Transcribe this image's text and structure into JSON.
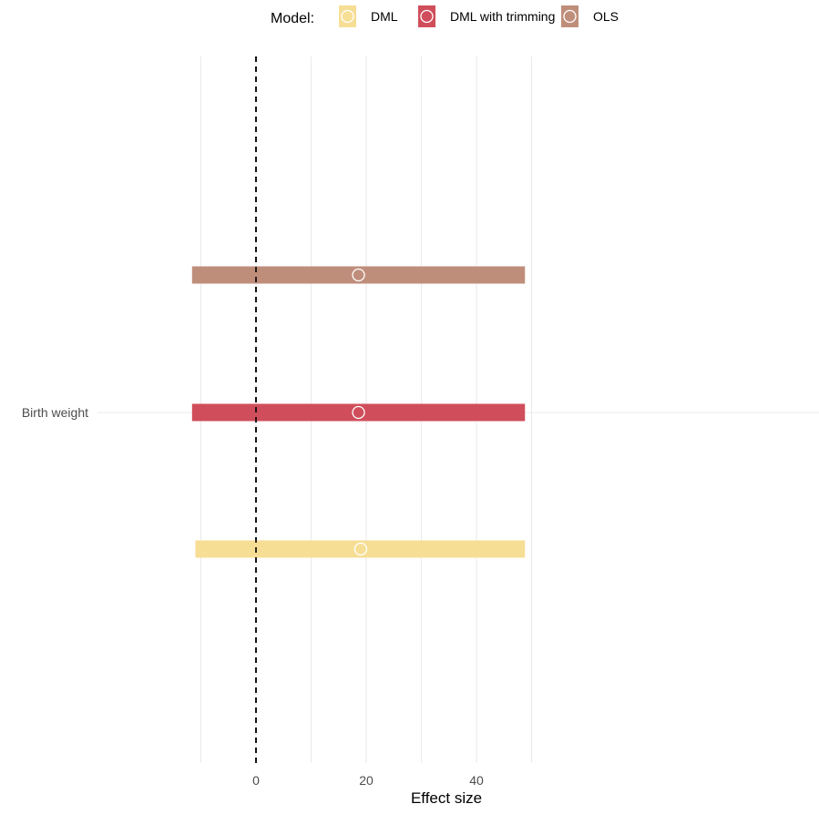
{
  "chart_data": {
    "type": "forest",
    "legend": {
      "title": "Model:",
      "placement": "top",
      "entries": [
        "DML",
        "DML with trimming",
        "OLS"
      ]
    },
    "xlabel": "Effect size",
    "ylabel": "",
    "xlim": [
      -10,
      49
    ],
    "x_ticks": [
      0,
      20,
      40
    ],
    "x_tick_labels": [
      "0",
      "20",
      "40"
    ],
    "grid": true,
    "reference_line": {
      "x": 0,
      "style": "dashed"
    },
    "categories": [
      "Birth weight"
    ],
    "series": [
      {
        "name": "DML",
        "color": "#F7DE95",
        "estimate": 19.0,
        "ci_low": -11.0,
        "ci_high": 48.8
      },
      {
        "name": "DML with trimming",
        "color": "#D04E5B",
        "estimate": 18.6,
        "ci_low": -11.6,
        "ci_high": 48.8
      },
      {
        "name": "OLS",
        "color": "#BF8E7B",
        "estimate": 18.6,
        "ci_low": -11.6,
        "ci_high": 48.8
      }
    ]
  }
}
